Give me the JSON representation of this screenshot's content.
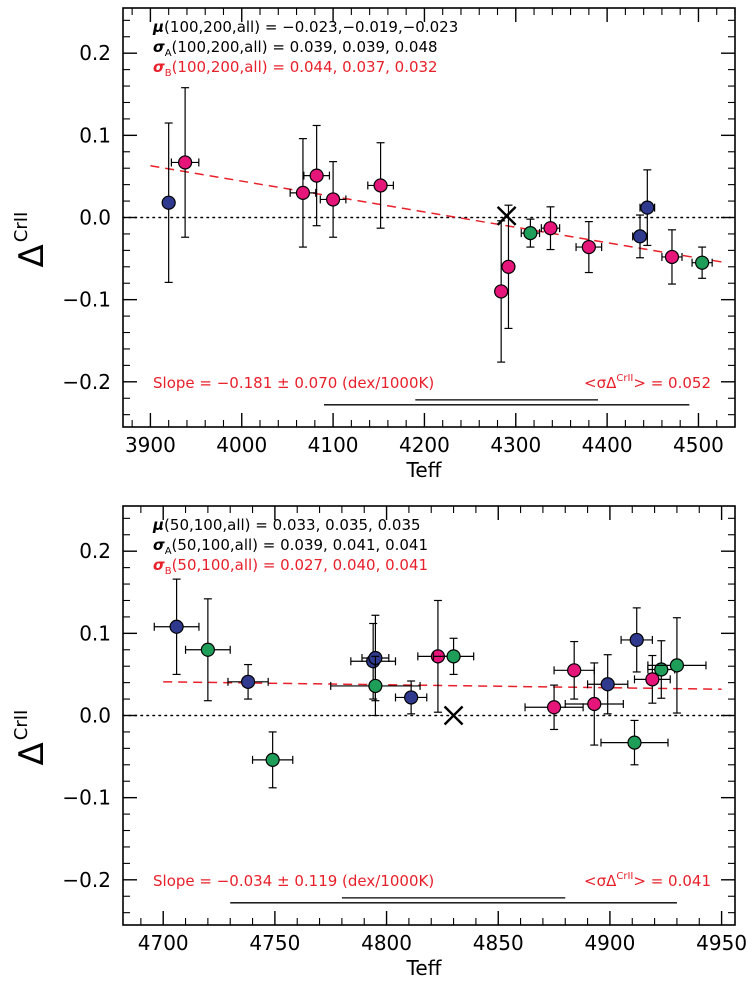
{
  "colors": {
    "accent_red": "#e8202a",
    "magenta": "#e6157a",
    "navy": "#2f3a8f",
    "green": "#1f9e5a",
    "black": "#000000"
  },
  "marker_color_map": {
    "m": "#e6157a",
    "n": "#2f3a8f",
    "g": "#1f9e5a"
  },
  "chart_data": [
    {
      "type": "scatter",
      "xlabel": "Teff",
      "ylabel_main": "Δ",
      "ylabel_sup": "CrII",
      "xlim": [
        3870,
        4540
      ],
      "ylim": [
        -0.255,
        0.255
      ],
      "xticks": [
        3900,
        4000,
        4100,
        4200,
        4300,
        4400,
        4500
      ],
      "yticks": [
        -0.2,
        -0.1,
        0.0,
        0.1,
        0.2
      ],
      "ytick_labels": [
        "−0.2",
        "−0.1",
        "0.0",
        "0.1",
        "0.2"
      ],
      "zero_line": true,
      "stats_lines": [
        {
          "text": "μ(100,200,all) = −0.023,−0.019,−0.023",
          "color": "black"
        },
        {
          "text": "σA(100,200,all) = 0.039, 0.039, 0.048",
          "color": "black"
        },
        {
          "text": "σB(100,200,all) = 0.044, 0.037, 0.032",
          "color": "red"
        }
      ],
      "slope_text": "Slope = −0.181 ± 0.070 (dex/1000K)",
      "mean_sigma_text": "<σΔCrII> = 0.052",
      "fit_line": {
        "x": [
          3900,
          4530
        ],
        "y": [
          0.063,
          -0.055
        ]
      },
      "reference_x": {
        "x": 4290,
        "y": 0.002
      },
      "range_bars": [
        {
          "x": [
            4190,
            4390
          ],
          "y": -0.222
        },
        {
          "x": [
            4090,
            4490
          ],
          "y": -0.228
        }
      ],
      "points": [
        {
          "x": 3920,
          "y": 0.018,
          "xerr": 0,
          "yerr": 0.097,
          "c": "n"
        },
        {
          "x": 3938,
          "y": 0.067,
          "xerr": 15,
          "yerr": 0.091,
          "c": "m"
        },
        {
          "x": 4067,
          "y": 0.03,
          "xerr": 14,
          "yerr": 0.066,
          "c": "m"
        },
        {
          "x": 4082,
          "y": 0.051,
          "xerr": 14,
          "yerr": 0.061,
          "c": "m"
        },
        {
          "x": 4100,
          "y": 0.022,
          "xerr": 14,
          "yerr": 0.046,
          "c": "m"
        },
        {
          "x": 4152,
          "y": 0.039,
          "xerr": 14,
          "yerr": 0.052,
          "c": "m"
        },
        {
          "x": 4284,
          "y": -0.09,
          "xerr": 5,
          "yerr": 0.086,
          "c": "m"
        },
        {
          "x": 4292,
          "y": -0.06,
          "xerr": 5,
          "yerr": 0.075,
          "c": "m"
        },
        {
          "x": 4316,
          "y": -0.019,
          "xerr": 10,
          "yerr": 0.017,
          "c": "g"
        },
        {
          "x": 4338,
          "y": -0.013,
          "xerr": 10,
          "yerr": 0.026,
          "c": "m"
        },
        {
          "x": 4380,
          "y": -0.036,
          "xerr": 14,
          "yerr": 0.031,
          "c": "m"
        },
        {
          "x": 4436,
          "y": -0.023,
          "xerr": 8,
          "yerr": 0.026,
          "c": "n"
        },
        {
          "x": 4444,
          "y": 0.012,
          "xerr": 8,
          "yerr": 0.046,
          "c": "n"
        },
        {
          "x": 4471,
          "y": -0.048,
          "xerr": 11,
          "yerr": 0.033,
          "c": "m"
        },
        {
          "x": 4504,
          "y": -0.055,
          "xerr": 11,
          "yerr": 0.019,
          "c": "g"
        }
      ]
    },
    {
      "type": "scatter",
      "xlabel": "Teff",
      "ylabel_main": "Δ",
      "ylabel_sup": "CrII",
      "xlim": [
        4682,
        4956
      ],
      "ylim": [
        -0.255,
        0.255
      ],
      "xticks": [
        4700,
        4750,
        4800,
        4850,
        4900,
        4950
      ],
      "yticks": [
        -0.2,
        -0.1,
        0.0,
        0.1,
        0.2
      ],
      "ytick_labels": [
        "−0.2",
        "−0.1",
        "0.0",
        "0.1",
        "0.2"
      ],
      "zero_line": true,
      "stats_lines": [
        {
          "text": "μ(50,100,all) = 0.033, 0.035, 0.035",
          "color": "black"
        },
        {
          "text": "σA(50,100,all) = 0.039, 0.041, 0.041",
          "color": "black"
        },
        {
          "text": "σB(50,100,all) = 0.027, 0.040, 0.041",
          "color": "red"
        }
      ],
      "slope_text": "Slope = −0.034 ± 0.119 (dex/1000K)",
      "mean_sigma_text": "<σΔCrII> = 0.041",
      "fit_line": {
        "x": [
          4700,
          4950
        ],
        "y": [
          0.041,
          0.032
        ]
      },
      "reference_x": {
        "x": 4830,
        "y": 0.0
      },
      "range_bars": [
        {
          "x": [
            4780,
            4880
          ],
          "y": -0.222
        },
        {
          "x": [
            4730,
            4930
          ],
          "y": -0.228
        }
      ],
      "points": [
        {
          "x": 4706,
          "y": 0.108,
          "xerr": 10,
          "yerr": 0.058,
          "c": "n"
        },
        {
          "x": 4720,
          "y": 0.08,
          "xerr": 10,
          "yerr": 0.062,
          "c": "g"
        },
        {
          "x": 4738,
          "y": 0.041,
          "xerr": 9,
          "yerr": 0.021,
          "c": "n"
        },
        {
          "x": 4749,
          "y": -0.054,
          "xerr": 9,
          "yerr": 0.034,
          "c": "g"
        },
        {
          "x": 4794,
          "y": 0.066,
          "xerr": 10,
          "yerr": 0.046,
          "c": "n"
        },
        {
          "x": 4795,
          "y": 0.07,
          "xerr": 6,
          "yerr": 0.052,
          "c": "n"
        },
        {
          "x": 4795,
          "y": 0.036,
          "xerr": 20,
          "yerr": 0.036,
          "c": "g"
        },
        {
          "x": 4811,
          "y": 0.022,
          "xerr": 7,
          "yerr": 0.02,
          "c": "n"
        },
        {
          "x": 4823,
          "y": 0.072,
          "xerr": 9,
          "yerr": 0.068,
          "c": "m"
        },
        {
          "x": 4830,
          "y": 0.072,
          "xerr": 9,
          "yerr": 0.022,
          "c": "g"
        },
        {
          "x": 4875,
          "y": 0.01,
          "xerr": 13,
          "yerr": 0.027,
          "c": "m"
        },
        {
          "x": 4884,
          "y": 0.055,
          "xerr": 9,
          "yerr": 0.035,
          "c": "m"
        },
        {
          "x": 4893,
          "y": 0.014,
          "xerr": 13,
          "yerr": 0.05,
          "c": "m"
        },
        {
          "x": 4899,
          "y": 0.038,
          "xerr": 9,
          "yerr": 0.036,
          "c": "n"
        },
        {
          "x": 4911,
          "y": -0.033,
          "xerr": 15,
          "yerr": 0.027,
          "c": "g"
        },
        {
          "x": 4912,
          "y": 0.092,
          "xerr": 7,
          "yerr": 0.039,
          "c": "n"
        },
        {
          "x": 4919,
          "y": 0.044,
          "xerr": 8,
          "yerr": 0.029,
          "c": "m"
        },
        {
          "x": 4923,
          "y": 0.056,
          "xerr": 6,
          "yerr": 0.035,
          "c": "g"
        },
        {
          "x": 4930,
          "y": 0.061,
          "xerr": 13,
          "yerr": 0.058,
          "c": "g"
        }
      ]
    }
  ]
}
